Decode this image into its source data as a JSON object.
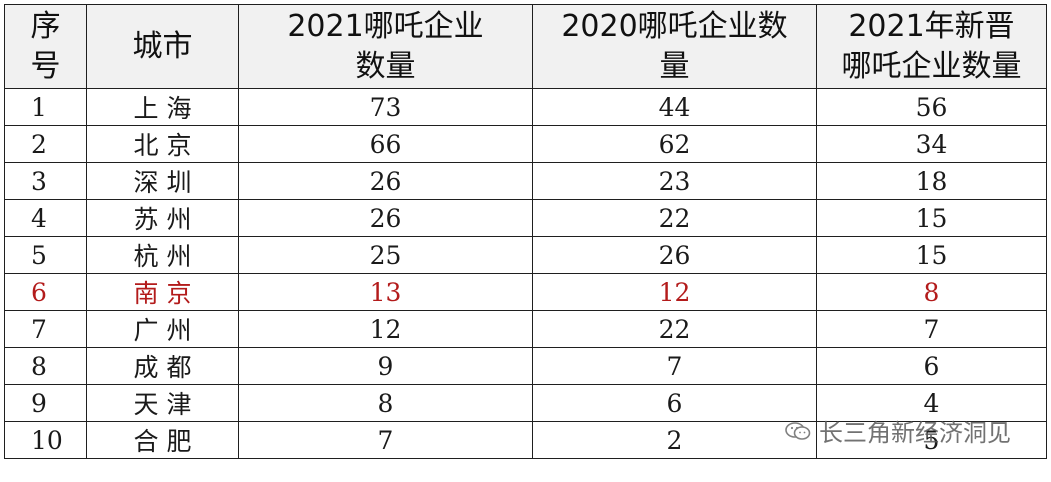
{
  "headers": {
    "rank": "序\n号",
    "city": "城市",
    "count_2021": "2021哪吒企业\n数量",
    "count_2020": "2020哪吒企业数\n量",
    "new_2021": "2021年新晋\n哪吒企业数量"
  },
  "rows": [
    {
      "rank": "1",
      "city": "上海",
      "count_2021": "73",
      "count_2020": "44",
      "new_2021": "56"
    },
    {
      "rank": "2",
      "city": "北京",
      "count_2021": "66",
      "count_2020": "62",
      "new_2021": "34"
    },
    {
      "rank": "3",
      "city": "深圳",
      "count_2021": "26",
      "count_2020": "23",
      "new_2021": "18"
    },
    {
      "rank": "4",
      "city": "苏州",
      "count_2021": "26",
      "count_2020": "22",
      "new_2021": "15"
    },
    {
      "rank": "5",
      "city": "杭州",
      "count_2021": "25",
      "count_2020": "26",
      "new_2021": "15"
    },
    {
      "rank": "6",
      "city": "南京",
      "count_2021": "13",
      "count_2020": "12",
      "new_2021": "8"
    },
    {
      "rank": "7",
      "city": "广州",
      "count_2021": "12",
      "count_2020": "22",
      "new_2021": "7"
    },
    {
      "rank": "8",
      "city": "成都",
      "count_2021": "9",
      "count_2020": "7",
      "new_2021": "6"
    },
    {
      "rank": "9",
      "city": "天津",
      "count_2021": "8",
      "count_2020": "6",
      "new_2021": "4"
    },
    {
      "rank": "10",
      "city": "合肥",
      "count_2021": "7",
      "count_2020": "2",
      "new_2021": "5"
    }
  ],
  "highlight_rank": "6",
  "highlight_color": "#b31b1b",
  "watermark": {
    "icon": "wechat-icon",
    "text": "长三角新经济洞见"
  }
}
